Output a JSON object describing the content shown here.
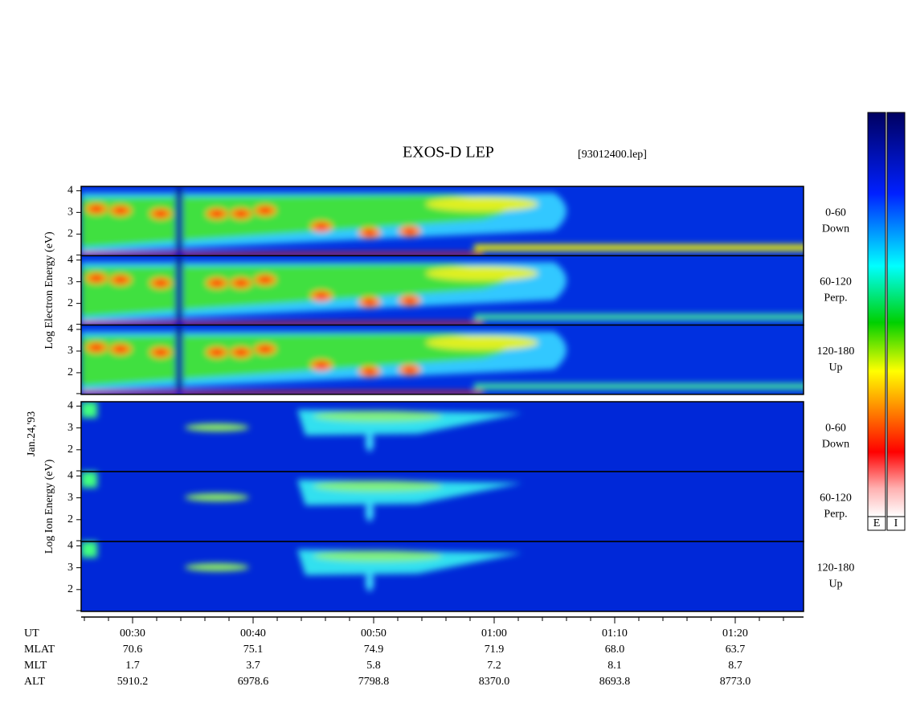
{
  "title": "EXOS-D LEP",
  "file": "[93012400.lep]",
  "date": "Jan.24,'93",
  "ylim": [
    1,
    4.2
  ],
  "yticks": [
    2,
    3,
    4
  ],
  "groups": [
    {
      "ylabel": "Log Electron Energy (eV)",
      "panels": [
        [
          "0-60",
          "Down"
        ],
        [
          "60-120",
          "Perp."
        ],
        [
          "120-180",
          "Up"
        ]
      ]
    },
    {
      "ylabel": "Log Ion Energy (eV)",
      "panels": [
        [
          "0-60",
          "Down"
        ],
        [
          "60-120",
          "Perp."
        ],
        [
          "120-180",
          "Up"
        ]
      ]
    }
  ],
  "colorbars": [
    "E",
    "I"
  ],
  "footer": [
    {
      "name": "UT",
      "values": [
        "00:30",
        "00:40",
        "00:50",
        "01:00",
        "01:10",
        "01:20"
      ]
    },
    {
      "name": "MLAT",
      "values": [
        "70.6",
        "75.1",
        "74.9",
        "71.9",
        "68.0",
        "63.7"
      ]
    },
    {
      "name": "MLT",
      "values": [
        "1.7",
        "3.7",
        "5.8",
        "7.2",
        "8.1",
        "8.7"
      ]
    },
    {
      "name": "ALT",
      "values": [
        "5910.2",
        "6978.6",
        "7798.8",
        "8370.0",
        "8693.8",
        "8773.0"
      ]
    }
  ]
}
